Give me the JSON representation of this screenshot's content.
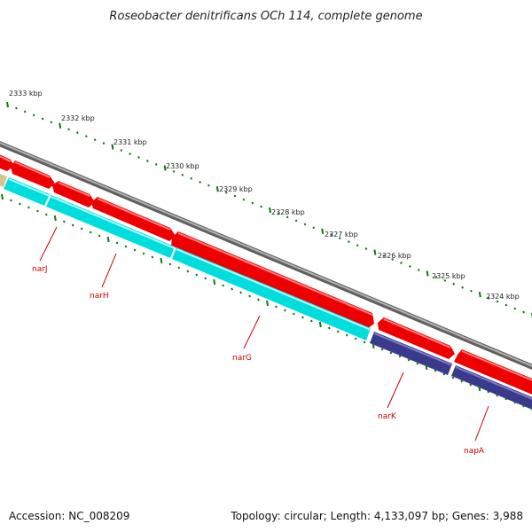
{
  "title": "Roseobacter denitrificans OCh 114, complete genome",
  "footer": {
    "accession": "Accession: NC_008209",
    "summary": "Topology: circular; Length: 4,133,097 bp; Genes: 3,988"
  },
  "ticks": [
    {
      "label": "2333 kbp"
    },
    {
      "label": "2332 kbp"
    },
    {
      "label": "2331 kbp"
    },
    {
      "label": "2330 kbp"
    },
    {
      "label": "2329 kbp"
    },
    {
      "label": "2328 kbp"
    },
    {
      "label": "2327 kbp"
    },
    {
      "label": "2326 kbp"
    },
    {
      "label": "2325 kbp"
    },
    {
      "label": "2324 kbp"
    }
  ],
  "genes": [
    {
      "name": "narJ",
      "color": "#00dddd"
    },
    {
      "name": "narH",
      "color": "#00dddd"
    },
    {
      "name": "narG",
      "color": "#00dddd"
    },
    {
      "name": "narK",
      "color": "#3a3a8c"
    },
    {
      "name": "napA",
      "color": "#3a3a8c"
    }
  ],
  "colors": {
    "backbone": "#7a7a7a",
    "cds": "#ee0000",
    "nitrate": "#00dddd",
    "transport": "#3a3a8c",
    "other": "#d4c890",
    "tick": "#117711",
    "label": "#cc0000"
  }
}
